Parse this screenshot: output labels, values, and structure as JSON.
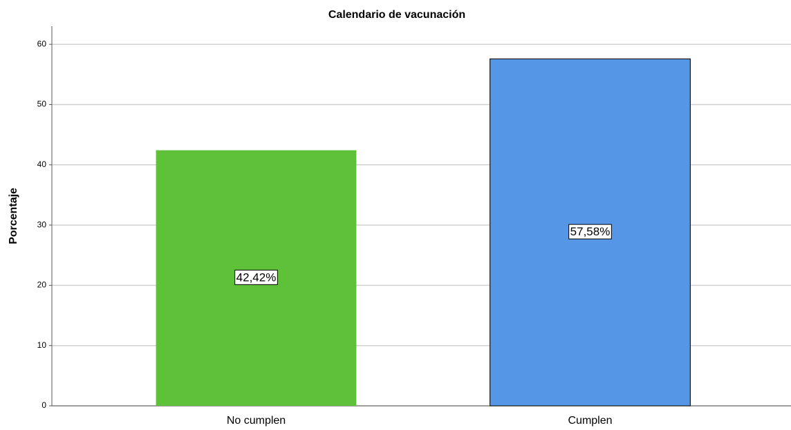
{
  "chart_data": {
    "type": "bar",
    "title": "Calendario de vacunación",
    "ylabel": "Porcentaje",
    "categories": [
      "No cumplen",
      "Cumplen"
    ],
    "values": [
      42.42,
      57.58
    ],
    "value_labels": [
      "42,42%",
      "57,58%"
    ],
    "colors": [
      "#5fc13a",
      "#5596e6"
    ],
    "edgecolors": [
      null,
      "#1a1a1a"
    ],
    "ylim": [
      0,
      63
    ],
    "yticks": [
      0,
      10,
      20,
      30,
      40,
      50,
      60
    ],
    "grid": true
  }
}
